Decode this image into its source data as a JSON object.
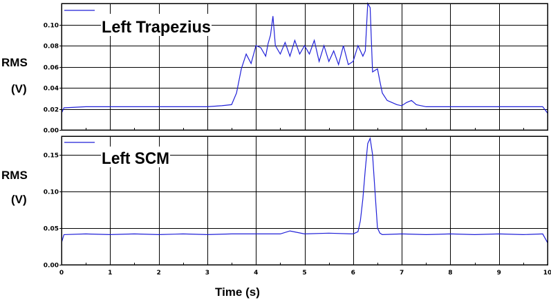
{
  "colors": {
    "trace": "#1f1fd8",
    "grid": "#000000",
    "background": "#ffffff"
  },
  "chart_data": [
    {
      "type": "line",
      "title": "Left Trapezius",
      "ylabel_line1": "RMS",
      "ylabel_line2": "(V)",
      "xlabel": "",
      "xlim": [
        0,
        10
      ],
      "ylim": [
        0,
        0.12
      ],
      "x_ticks": [
        0,
        1,
        2,
        3,
        4,
        5,
        6,
        7,
        8,
        9,
        10
      ],
      "y_ticks": [
        0.0,
        0.02,
        0.04,
        0.06,
        0.08,
        0.1
      ],
      "y_tick_labels": [
        "0.00",
        "0.02",
        "0.04",
        "0.06",
        "0.08",
        "0.10"
      ],
      "grid": true,
      "legend": "top-left",
      "series": [
        {
          "x": [
            0,
            0.05,
            0.5,
            1.0,
            1.5,
            2.0,
            2.5,
            3.0,
            3.3,
            3.5,
            3.6,
            3.7,
            3.8,
            3.9,
            4.0,
            4.1,
            4.2,
            4.25,
            4.3,
            4.35,
            4.4,
            4.5,
            4.6,
            4.7,
            4.8,
            4.9,
            5.0,
            5.1,
            5.2,
            5.3,
            5.4,
            5.5,
            5.6,
            5.7,
            5.8,
            5.9,
            6.0,
            6.1,
            6.2,
            6.25,
            6.3,
            6.35,
            6.4,
            6.5,
            6.55,
            6.6,
            6.7,
            6.8,
            6.9,
            7.0,
            7.1,
            7.2,
            7.3,
            7.5,
            8.0,
            8.5,
            9.0,
            9.5,
            9.9,
            10.0
          ],
          "y": [
            0.016,
            0.021,
            0.022,
            0.022,
            0.022,
            0.022,
            0.022,
            0.022,
            0.023,
            0.024,
            0.035,
            0.058,
            0.072,
            0.063,
            0.08,
            0.078,
            0.07,
            0.082,
            0.09,
            0.108,
            0.08,
            0.072,
            0.083,
            0.07,
            0.085,
            0.072,
            0.08,
            0.072,
            0.085,
            0.065,
            0.08,
            0.065,
            0.075,
            0.062,
            0.08,
            0.062,
            0.065,
            0.08,
            0.07,
            0.075,
            0.13,
            0.116,
            0.055,
            0.058,
            0.046,
            0.035,
            0.028,
            0.026,
            0.024,
            0.023,
            0.026,
            0.028,
            0.024,
            0.022,
            0.022,
            0.022,
            0.022,
            0.022,
            0.022,
            0.016
          ]
        }
      ]
    },
    {
      "type": "line",
      "title": "Left SCM",
      "ylabel_line1": "RMS",
      "ylabel_line2": "(V)",
      "xlabel": "Time (s)",
      "xlim": [
        0,
        10
      ],
      "ylim": [
        0,
        0.175
      ],
      "x_ticks": [
        0,
        1,
        2,
        3,
        4,
        5,
        6,
        7,
        8,
        9,
        10
      ],
      "x_tick_labels": [
        "0",
        "1",
        "2",
        "3",
        "4",
        "5",
        "6",
        "7",
        "8",
        "9",
        "10"
      ],
      "y_ticks": [
        0.0,
        0.05,
        0.1,
        0.15
      ],
      "y_tick_labels": [
        "0.00",
        "0.05",
        "0.10",
        "0.15"
      ],
      "grid": true,
      "legend": "top-left",
      "series": [
        {
          "x": [
            0,
            0.05,
            0.5,
            1.0,
            1.5,
            2.0,
            2.5,
            3.0,
            3.5,
            4.0,
            4.5,
            4.7,
            5.0,
            5.5,
            6.0,
            6.1,
            6.15,
            6.2,
            6.25,
            6.3,
            6.35,
            6.4,
            6.45,
            6.5,
            6.55,
            6.6,
            7.0,
            7.5,
            8.0,
            8.5,
            9.0,
            9.5,
            9.9,
            10.0
          ],
          "y": [
            0.03,
            0.041,
            0.042,
            0.041,
            0.042,
            0.041,
            0.042,
            0.041,
            0.042,
            0.042,
            0.042,
            0.046,
            0.042,
            0.043,
            0.042,
            0.045,
            0.06,
            0.09,
            0.13,
            0.165,
            0.172,
            0.15,
            0.1,
            0.05,
            0.043,
            0.041,
            0.042,
            0.041,
            0.042,
            0.041,
            0.042,
            0.041,
            0.042,
            0.03
          ]
        }
      ]
    }
  ]
}
